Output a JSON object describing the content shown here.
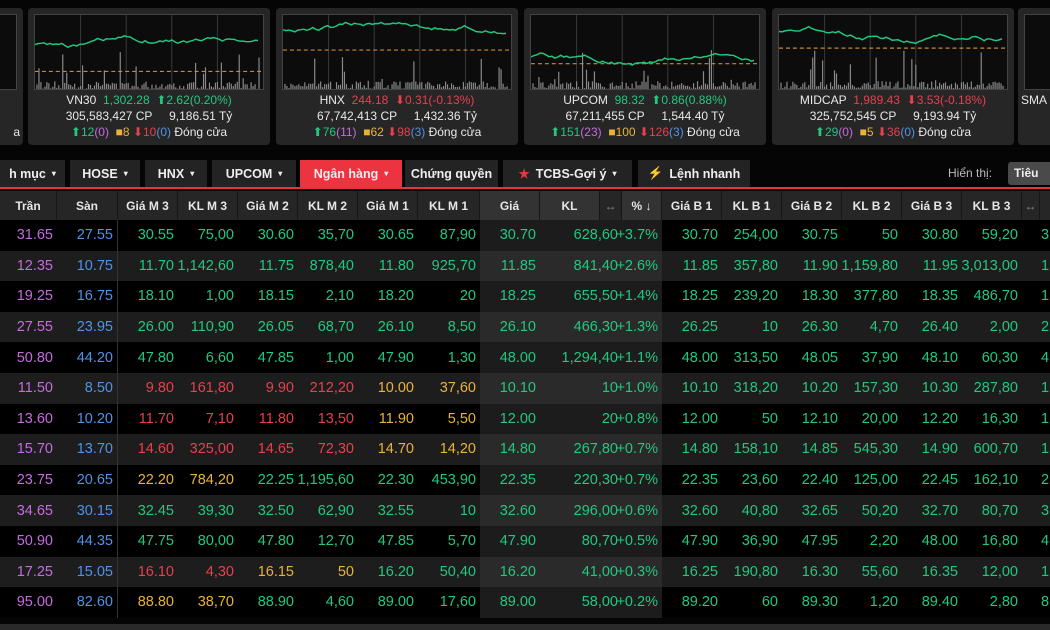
{
  "colors": {
    "up": "#22c780",
    "down": "#ea3f4c",
    "ref": "#eab23a",
    "ceiling": "#c66be0",
    "floor": "#4f93ea",
    "active_tab": "#ec3340"
  },
  "left_partial_panel": {
    "status_fragment": "a"
  },
  "indices": [
    {
      "name": "VN30",
      "value": "1,302.28",
      "change": "2.62(0.20%)",
      "direction": "up",
      "volume": "305,583,427",
      "volume_unit": "CP",
      "value_traded": "9,186.51",
      "value_unit": "Tỷ",
      "advances": "12",
      "adv_ceiling": "(0)",
      "unchanged": "8",
      "declines": "10",
      "dec_floor": "(0)",
      "status": "Đóng cửa"
    },
    {
      "name": "HNX",
      "value": "244.18",
      "change": "0.31(-0.13%)",
      "direction": "down",
      "volume": "67,742,413",
      "volume_unit": "CP",
      "value_traded": "1,432.36",
      "value_unit": "Tỷ",
      "advances": "76",
      "adv_ceiling": "(11)",
      "unchanged": "62",
      "declines": "98",
      "dec_floor": "(3)",
      "status": "Đóng cửa"
    },
    {
      "name": "UPCOM",
      "value": "98.32",
      "change": "0.86(0.88%)",
      "direction": "up",
      "volume": "67,211,455",
      "volume_unit": "CP",
      "value_traded": "1,544.40",
      "value_unit": "Tỷ",
      "advances": "151",
      "adv_ceiling": "(23)",
      "unchanged": "100",
      "declines": "126",
      "dec_floor": "(3)",
      "status": "Đóng cửa"
    },
    {
      "name": "MIDCAP",
      "value": "1,989.43",
      "change": "3.53(-0.18%)",
      "direction": "down",
      "volume": "325,752,545",
      "volume_unit": "CP",
      "value_traded": "9,193.94",
      "value_unit": "Tỷ",
      "advances": "29",
      "adv_ceiling": "(0)",
      "unchanged": "5",
      "declines": "36",
      "dec_floor": "(0)",
      "status": "Đóng cửa"
    }
  ],
  "right_partial_panel": {
    "name_fragment": "SMA"
  },
  "tabs": [
    {
      "label": "h mục",
      "caret": "▾"
    },
    {
      "label": "HOSE",
      "caret": "▾"
    },
    {
      "label": "HNX",
      "caret": "▾"
    },
    {
      "label": "UPCOM",
      "caret": "▾"
    },
    {
      "label": "Ngân hàng",
      "caret": "▾",
      "active": true
    },
    {
      "label": "Chứng quyền",
      "caret": ""
    },
    {
      "label": "TCBS-Gợi ý",
      "caret": "▾",
      "icon": "★"
    },
    {
      "label": "Lệnh nhanh",
      "caret": "",
      "icon": "⚡"
    }
  ],
  "display": {
    "label": "Hiển thị:",
    "button": "Tiêu"
  },
  "columns": [
    "Trần",
    "Sàn",
    "Giá M 3",
    "KL M 3",
    "Giá M 2",
    "KL M 2",
    "Giá M 1",
    "KL M 1",
    "Giá",
    "KL",
    "↔",
    "% ↓",
    "Giá B 1",
    "KL B 1",
    "Giá B 2",
    "KL B 2",
    "Giá B 3",
    "KL B 3",
    "↔"
  ],
  "rows": [
    {
      "cells": [
        "31.65",
        "27.55",
        "30.55",
        "75,00",
        "30.60",
        "35,70",
        "30.65",
        "87,90",
        "30.70",
        "628,60",
        "+3.7%",
        "30.70",
        "254,00",
        "30.75",
        "50",
        "30.80",
        "59,20",
        "3"
      ],
      "tones": [
        "g",
        "g",
        "g"
      ]
    },
    {
      "cells": [
        "12.35",
        "10.75",
        "11.70",
        "1,142,60",
        "11.75",
        "878,40",
        "11.80",
        "925,70",
        "11.85",
        "841,40",
        "+2.6%",
        "11.85",
        "357,80",
        "11.90",
        "1,159,80",
        "11.95",
        "3,013,00",
        "1"
      ],
      "tones": [
        "g",
        "g",
        "g"
      ]
    },
    {
      "cells": [
        "19.25",
        "16.75",
        "18.10",
        "1,00",
        "18.15",
        "2,10",
        "18.20",
        "20",
        "18.25",
        "655,50",
        "+1.4%",
        "18.25",
        "239,20",
        "18.30",
        "377,80",
        "18.35",
        "486,70",
        "1"
      ],
      "tones": [
        "g",
        "g",
        "g"
      ]
    },
    {
      "cells": [
        "27.55",
        "23.95",
        "26.00",
        "110,90",
        "26.05",
        "68,70",
        "26.10",
        "8,50",
        "26.10",
        "466,30",
        "+1.3%",
        "26.25",
        "10",
        "26.30",
        "4,70",
        "26.40",
        "2,00",
        "2"
      ],
      "tones": [
        "g",
        "g",
        "g"
      ]
    },
    {
      "cells": [
        "50.80",
        "44.20",
        "47.80",
        "6,60",
        "47.85",
        "1,00",
        "47.90",
        "1,30",
        "48.00",
        "1,294,40",
        "+1.1%",
        "48.00",
        "313,50",
        "48.05",
        "37,90",
        "48.10",
        "60,30",
        "4"
      ],
      "tones": [
        "g",
        "g",
        "g"
      ]
    },
    {
      "cells": [
        "11.50",
        "8.50",
        "9.80",
        "161,80",
        "9.90",
        "212,20",
        "10.00",
        "37,60",
        "10.10",
        "10",
        "+1.0%",
        "10.10",
        "318,20",
        "10.20",
        "157,30",
        "10.30",
        "287,80",
        "1"
      ],
      "tones": [
        "r",
        "r",
        "y"
      ]
    },
    {
      "cells": [
        "13.60",
        "10.20",
        "11.70",
        "7,10",
        "11.80",
        "13,50",
        "11.90",
        "5,50",
        "12.00",
        "20",
        "+0.8%",
        "12.00",
        "50",
        "12.10",
        "20,00",
        "12.20",
        "16,30",
        "1"
      ],
      "tones": [
        "r",
        "r",
        "y"
      ]
    },
    {
      "cells": [
        "15.70",
        "13.70",
        "14.60",
        "325,00",
        "14.65",
        "72,30",
        "14.70",
        "14,20",
        "14.80",
        "267,80",
        "+0.7%",
        "14.80",
        "158,10",
        "14.85",
        "545,30",
        "14.90",
        "600,70",
        "1"
      ],
      "tones": [
        "r",
        "r",
        "y"
      ]
    },
    {
      "cells": [
        "23.75",
        "20.65",
        "22.20",
        "784,20",
        "22.25",
        "1,195,60",
        "22.30",
        "453,90",
        "22.35",
        "220,30",
        "+0.7%",
        "22.35",
        "23,60",
        "22.40",
        "125,00",
        "22.45",
        "162,10",
        "2"
      ],
      "tones": [
        "y",
        "g",
        "g"
      ]
    },
    {
      "cells": [
        "34.65",
        "30.15",
        "32.45",
        "39,30",
        "32.50",
        "62,90",
        "32.55",
        "10",
        "32.60",
        "296,00",
        "+0.6%",
        "32.60",
        "40,80",
        "32.65",
        "50,20",
        "32.70",
        "80,70",
        "3"
      ],
      "tones": [
        "g",
        "g",
        "g"
      ]
    },
    {
      "cells": [
        "50.90",
        "44.35",
        "47.75",
        "80,00",
        "47.80",
        "12,70",
        "47.85",
        "5,70",
        "47.90",
        "80,70",
        "+0.5%",
        "47.90",
        "36,90",
        "47.95",
        "2,20",
        "48.00",
        "16,80",
        "4"
      ],
      "tones": [
        "g",
        "g",
        "g"
      ]
    },
    {
      "cells": [
        "17.25",
        "15.05",
        "16.10",
        "4,30",
        "16.15",
        "50",
        "16.20",
        "50,40",
        "16.20",
        "41,00",
        "+0.3%",
        "16.25",
        "190,80",
        "16.30",
        "55,60",
        "16.35",
        "12,00",
        "1"
      ],
      "tones": [
        "r",
        "y",
        "g"
      ]
    },
    {
      "cells": [
        "95.00",
        "82.60",
        "88.80",
        "38,70",
        "88.90",
        "4,60",
        "89.00",
        "17,60",
        "89.00",
        "58,00",
        "+0.2%",
        "89.20",
        "60",
        "89.30",
        "1,20",
        "89.40",
        "2,80",
        "8"
      ],
      "tones": [
        "y",
        "g",
        "g"
      ]
    }
  ]
}
